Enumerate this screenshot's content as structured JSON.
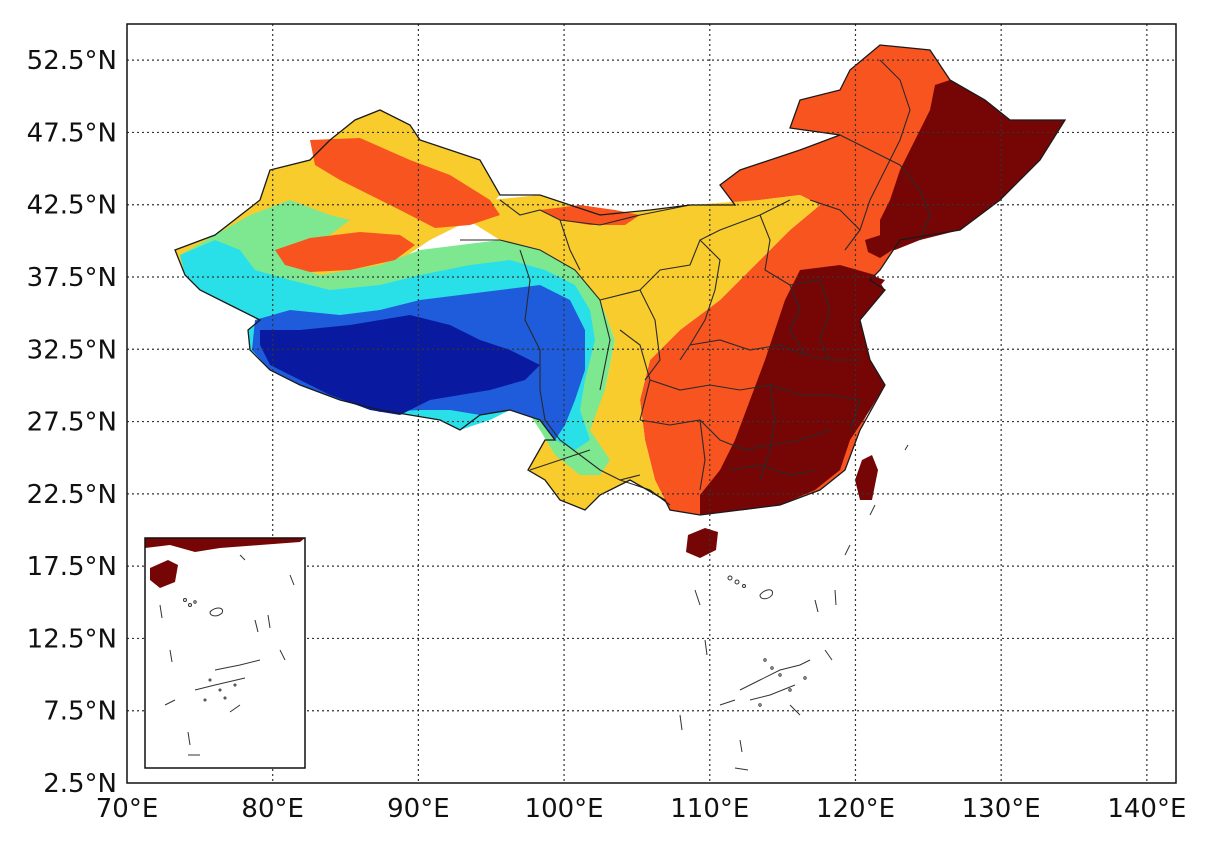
{
  "map": {
    "x_ticks": [
      "70°E",
      "80°E",
      "90°E",
      "100°E",
      "110°E",
      "120°E",
      "130°E",
      "140°E"
    ],
    "y_ticks": [
      "2.5°N",
      "7.5°N",
      "12.5°N",
      "17.5°N",
      "22.5°N",
      "27.5°N",
      "32.5°N",
      "37.5°N",
      "42.5°N",
      "47.5°N",
      "52.5°N"
    ],
    "x_range": [
      70,
      142
    ],
    "y_range": [
      2.5,
      55
    ],
    "grid": true,
    "inset_panel": "south-china-sea",
    "colors": {
      "darkest_blue": "#0a1aa0",
      "blue": "#1e5cdc",
      "cyan": "#2ae0e8",
      "green": "#7ee890",
      "yellow": "#f8cc2c",
      "orange_red": "#f85420",
      "dark_red": "#760606"
    }
  }
}
